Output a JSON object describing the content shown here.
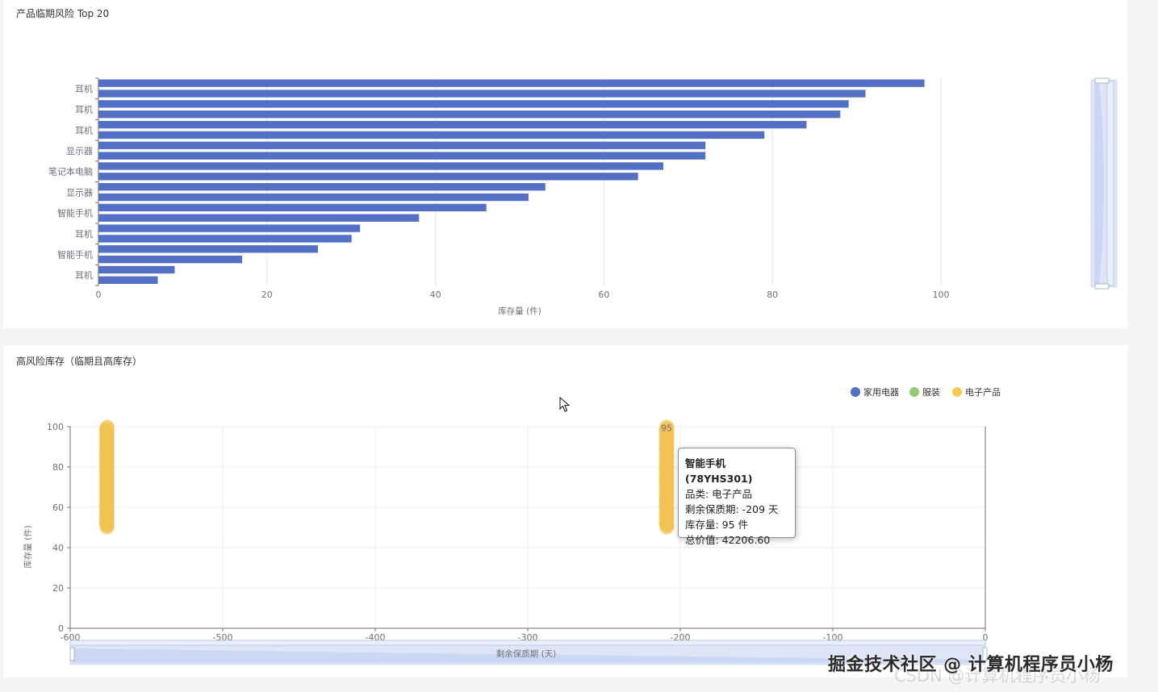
{
  "chart_data": [
    {
      "type": "bar",
      "orientation": "horizontal",
      "title": "产品临期风险 Top 20",
      "xlabel": "库存量 (件)",
      "xlim": [
        0,
        100
      ],
      "xticks": [
        "0",
        "20",
        "40",
        "60",
        "80",
        "100"
      ],
      "ytick_labels": [
        "耳机",
        "耳机",
        "耳机",
        "显示器",
        "笔记本电脑",
        "显示器",
        "智能手机",
        "耳机",
        "智能手机",
        "耳机"
      ],
      "values": [
        98,
        91,
        89,
        88,
        84,
        79,
        72,
        72,
        67,
        64,
        53,
        51,
        46,
        38,
        31,
        30,
        26,
        17,
        9,
        7
      ],
      "color": "#5470c6",
      "grid": true,
      "datazoom": "right"
    },
    {
      "type": "scatter",
      "title": "高风险库存（临期且高库存）",
      "xlabel": "剩余保质期 (天)",
      "ylabel": "库存量 (件)",
      "xlim": [
        -600,
        0
      ],
      "ylim": [
        0,
        100
      ],
      "xticks": [
        "-600",
        "-500",
        "-400",
        "-300",
        "-200",
        "-100",
        "0"
      ],
      "yticks": [
        "0",
        "20",
        "40",
        "60",
        "80",
        "100"
      ],
      "legend": {
        "placement": "top-right",
        "items": [
          {
            "name": "家用电器",
            "color": "#5470c6"
          },
          {
            "name": "服装",
            "color": "#91cc75"
          },
          {
            "name": "电子产品",
            "color": "#fac858"
          }
        ]
      },
      "series": [
        {
          "name": "电子产品",
          "color": "#f0c453",
          "x": [
            -576,
            -576,
            -576,
            -576,
            -576,
            -576,
            -576,
            -576,
            -576,
            -576,
            -576,
            -576,
            -576,
            -576,
            -576,
            -576,
            -576,
            -576,
            -576,
            -576,
            -576,
            -576,
            -576,
            -576,
            -576,
            -576,
            -576,
            -576,
            -576,
            -576,
            -576,
            -576,
            -576,
            -576,
            -576,
            -576,
            -576,
            -576,
            -576,
            -576,
            -576,
            -576,
            -576,
            -576,
            -576,
            -576,
            -576,
            -576,
            -576,
            -576,
            -576,
            -576,
            -576,
            -576,
            -576,
            -576,
            -576,
            -576,
            -576,
            -576,
            -576,
            -576,
            -576,
            -576,
            -576,
            -576,
            -576,
            -576,
            -576,
            -576,
            -576,
            -576,
            -576,
            -576,
            -576,
            -576,
            -576,
            -576,
            -576,
            -576,
            -576,
            -576,
            -576,
            -576,
            -576,
            -576,
            -576,
            -576,
            -576,
            -576,
            -576,
            -576,
            -576,
            -576,
            -576,
            -576,
            -576,
            -576,
            -576,
            -576,
            -576,
            -576,
            -576,
            -576,
            -576,
            -576,
            -576,
            -576,
            -576,
            -576,
            -209,
            -209,
            -209,
            -209,
            -209,
            -209,
            -209,
            -209,
            -209,
            -209,
            -209,
            -209,
            -209,
            -209,
            -209,
            -209,
            -209,
            -209,
            -209,
            -209,
            -209,
            -209,
            -209,
            -209,
            -209,
            -209,
            -209,
            -209,
            -209,
            -209,
            -209,
            -209,
            -209,
            -209,
            -209,
            -209,
            -209,
            -209,
            -209,
            -209,
            -209,
            -209,
            -209,
            -209,
            -209,
            -209,
            -209,
            -209,
            -209,
            -209,
            -209,
            -209,
            -209,
            -209,
            -209,
            -209,
            -209,
            -209,
            -209,
            -209,
            -209,
            -209,
            -209,
            -209,
            -209,
            -209,
            -209,
            -209,
            -209,
            -209,
            -209,
            -209,
            -209,
            -209,
            -209,
            -209,
            -209,
            -209,
            -209,
            -209,
            -209,
            -209,
            -209,
            -209,
            -209,
            -209,
            -209,
            -209,
            -209,
            -209,
            -209,
            -209,
            -209,
            -209,
            -209,
            -209,
            -209,
            -209,
            -209,
            -209,
            -209,
            -209,
            -209,
            -209,
            -209,
            -209,
            -209,
            -209,
            -209,
            -209,
            -209
          ],
          "y_min": 50,
          "y_max": 100,
          "label": "95"
        }
      ],
      "datazoom": "bottom"
    }
  ],
  "tooltip": {
    "title": "智能手机 (78YHS301)",
    "lines": [
      "品类: 电子产品",
      "剩余保质期: -209 天",
      "库存量: 95 件",
      "总价值: 42206.60"
    ]
  },
  "watermark": "掘金技术社区 @ 计算机程序员小杨",
  "watermark2": "CSDN @计算机程序员小杨"
}
